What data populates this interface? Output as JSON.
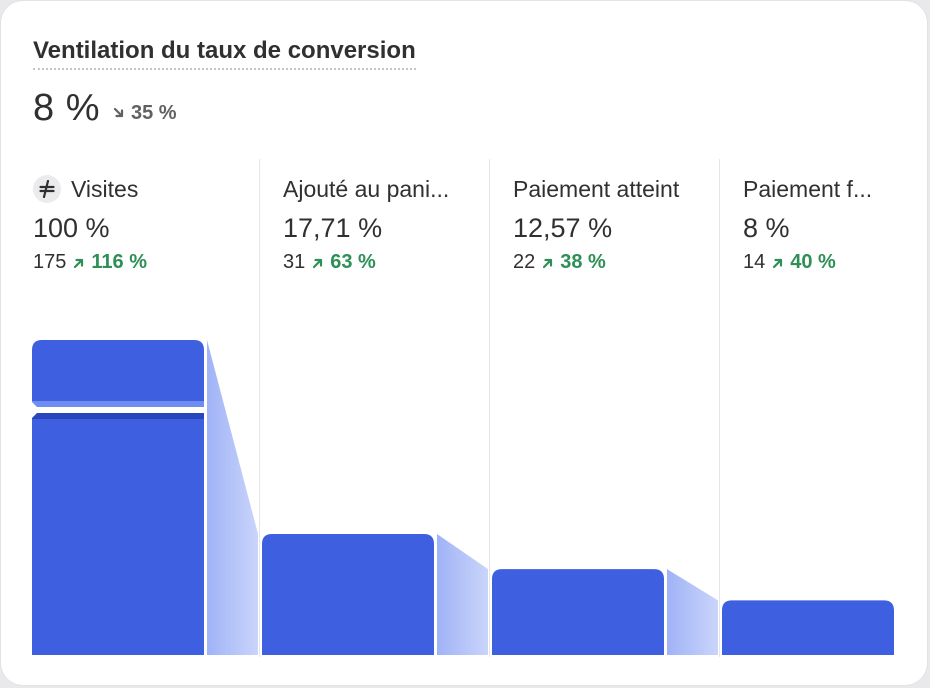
{
  "header": {
    "title": "Ventilation du taux de conversion",
    "summary_value": "8 %",
    "summary_change": "35 %",
    "summary_trend": "down"
  },
  "colors": {
    "bar": "#3d5fe0",
    "connector": "#a7b8f7",
    "positive": "#2e8f57",
    "neutral": "#616161"
  },
  "chart_data": {
    "type": "bar",
    "categories": [
      "Visites",
      "Ajouté au pani...",
      "Paiement atteint",
      "Paiement f..."
    ],
    "series": [
      {
        "values": [
          100,
          17.71,
          12.57,
          8
        ],
        "labels": [
          "100 %",
          "17,71 %",
          "12,57 %",
          "8 %"
        ],
        "counts": [
          "175",
          "31",
          "22",
          "14"
        ],
        "changes": [
          "116 %",
          "63 %",
          "38 %",
          "40 %"
        ],
        "trend": [
          "up",
          "up",
          "up",
          "up"
        ]
      }
    ],
    "first_step_icon": "scale-break-icon",
    "axis_break": true
  }
}
